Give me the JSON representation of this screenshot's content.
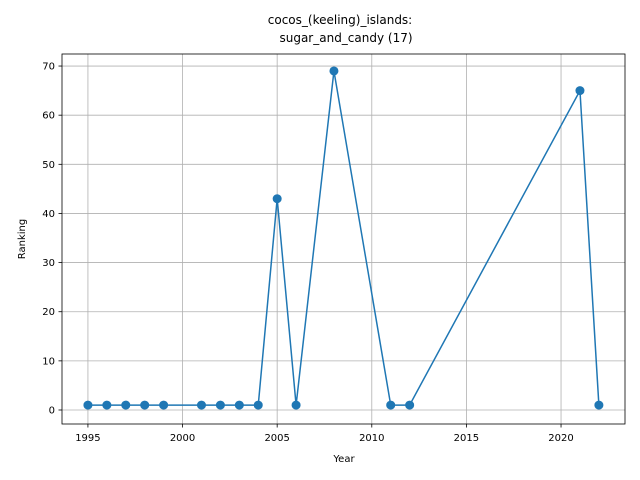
{
  "chart_data": {
    "type": "line",
    "title": [
      "cocos_(keeling)_islands:",
      "sugar_and_candy (17)"
    ],
    "x_label": "Year",
    "y_label": "Ranking",
    "x": [
      1995,
      1996,
      1997,
      1998,
      1999,
      2001,
      2002,
      2003,
      2004,
      2005,
      2006,
      2008,
      2011,
      2012,
      2021,
      2022
    ],
    "series": [
      {
        "name": "Ranking",
        "color": "#1f77b4",
        "values": [
          1,
          1,
          1,
          1,
          1,
          1,
          1,
          1,
          1,
          43,
          1,
          69,
          1,
          1,
          65,
          1
        ]
      }
    ],
    "xlim": [
      1993.63,
      2023.38
    ],
    "xticks": [
      1995,
      2000,
      2005,
      2010,
      2015,
      2020
    ],
    "ylim": [
      -2.85,
      72.45
    ],
    "yticks": [
      0,
      10,
      20,
      30,
      40,
      50,
      60,
      70
    ],
    "grid": true,
    "markers": true
  }
}
